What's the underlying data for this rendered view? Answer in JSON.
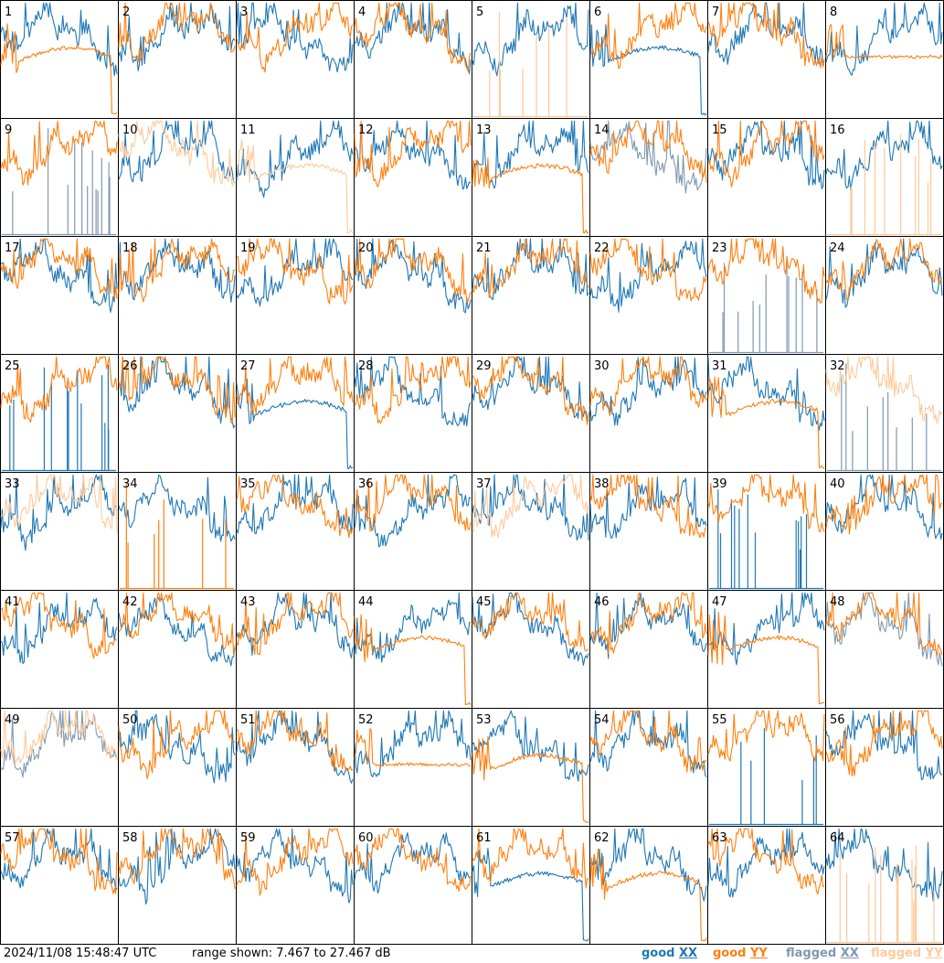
{
  "footer": {
    "timestamp": "2024/11/08 15:48:47 UTC",
    "range_text": "range shown: 7.467 to 27.467 dB"
  },
  "legend": [
    {
      "key": "good_xx",
      "word": "good",
      "pol": "XX",
      "color": "#1f77b4"
    },
    {
      "key": "good_yy",
      "word": "good",
      "pol": "YY",
      "color": "#ff7f0e"
    },
    {
      "key": "flagged_xx",
      "word": "flagged",
      "pol": "XX",
      "color": "#7f98b0"
    },
    {
      "key": "flagged_yy",
      "word": "flagged",
      "pol": "YY",
      "color": "#ffc99a"
    }
  ],
  "chart_data": {
    "type": "line",
    "grid": {
      "rows": 8,
      "cols": 8
    },
    "ylim_db": [
      7.467,
      27.467
    ],
    "panels": [
      {
        "label": "1",
        "xx": "good",
        "yy": "good",
        "yy_shape": "drop"
      },
      {
        "label": "2",
        "xx": "good",
        "yy": "good"
      },
      {
        "label": "3",
        "xx": "good",
        "yy": "good"
      },
      {
        "label": "4",
        "xx": "good",
        "yy": "good"
      },
      {
        "label": "5",
        "xx": "good",
        "yy": "flagged",
        "yy_shape": "spikes"
      },
      {
        "label": "6",
        "xx": "good",
        "yy": "good",
        "xx_shape": "drop"
      },
      {
        "label": "7",
        "xx": "good",
        "yy": "good"
      },
      {
        "label": "8",
        "xx": "good",
        "yy": "good",
        "yy_shape": "flat"
      },
      {
        "label": "9",
        "xx": "flagged",
        "yy": "good",
        "xx_shape": "spikes"
      },
      {
        "label": "10",
        "xx": "good",
        "yy": "flagged"
      },
      {
        "label": "11",
        "xx": "good",
        "yy": "flagged",
        "yy_shape": "drop"
      },
      {
        "label": "12",
        "xx": "good",
        "yy": "good"
      },
      {
        "label": "13",
        "xx": "good",
        "yy": "good",
        "yy_shape": "drop"
      },
      {
        "label": "14",
        "xx": "flagged",
        "yy": "good"
      },
      {
        "label": "15",
        "xx": "good",
        "yy": "good"
      },
      {
        "label": "16",
        "xx": "good",
        "yy": "flagged",
        "yy_shape": "spikes"
      },
      {
        "label": "17",
        "xx": "good",
        "yy": "good"
      },
      {
        "label": "18",
        "xx": "good",
        "yy": "good"
      },
      {
        "label": "19",
        "xx": "good",
        "yy": "good"
      },
      {
        "label": "20",
        "xx": "good",
        "yy": "good"
      },
      {
        "label": "21",
        "xx": "good",
        "yy": "good"
      },
      {
        "label": "22",
        "xx": "good",
        "yy": "good"
      },
      {
        "label": "23",
        "xx": "flagged",
        "yy": "good",
        "xx_shape": "spikes"
      },
      {
        "label": "24",
        "xx": "good",
        "yy": "good"
      },
      {
        "label": "25",
        "xx": "good",
        "yy": "good",
        "xx_shape": "spikes"
      },
      {
        "label": "26",
        "xx": "good",
        "yy": "good"
      },
      {
        "label": "27",
        "xx": "good",
        "yy": "good",
        "xx_shape": "drop"
      },
      {
        "label": "28",
        "xx": "good",
        "yy": "good"
      },
      {
        "label": "29",
        "xx": "good",
        "yy": "good"
      },
      {
        "label": "30",
        "xx": "good",
        "yy": "good"
      },
      {
        "label": "31",
        "xx": "good",
        "yy": "good",
        "yy_shape": "drop"
      },
      {
        "label": "32",
        "xx": "flagged",
        "yy": "flagged",
        "xx_shape": "spikes"
      },
      {
        "label": "33",
        "xx": "good",
        "yy": "flagged"
      },
      {
        "label": "34",
        "xx": "good",
        "yy": "good",
        "yy_shape": "spikes"
      },
      {
        "label": "35",
        "xx": "good",
        "yy": "good"
      },
      {
        "label": "36",
        "xx": "good",
        "yy": "good"
      },
      {
        "label": "37",
        "xx": "good",
        "yy": "flagged"
      },
      {
        "label": "38",
        "xx": "good",
        "yy": "good"
      },
      {
        "label": "39",
        "xx": "good",
        "yy": "good",
        "xx_shape": "spikes"
      },
      {
        "label": "40",
        "xx": "good",
        "yy": "good"
      },
      {
        "label": "41",
        "xx": "good",
        "yy": "good"
      },
      {
        "label": "42",
        "xx": "good",
        "yy": "good"
      },
      {
        "label": "43",
        "xx": "good",
        "yy": "good"
      },
      {
        "label": "44",
        "xx": "good",
        "yy": "good",
        "yy_shape": "drop"
      },
      {
        "label": "45",
        "xx": "good",
        "yy": "good"
      },
      {
        "label": "46",
        "xx": "good",
        "yy": "good"
      },
      {
        "label": "47",
        "xx": "good",
        "yy": "good",
        "yy_shape": "drop"
      },
      {
        "label": "48",
        "xx": "flagged",
        "yy": "good"
      },
      {
        "label": "49",
        "xx": "flagged",
        "yy": "flagged"
      },
      {
        "label": "50",
        "xx": "good",
        "yy": "good"
      },
      {
        "label": "51",
        "xx": "good",
        "yy": "good"
      },
      {
        "label": "52",
        "xx": "good",
        "yy": "good",
        "yy_shape": "flat"
      },
      {
        "label": "53",
        "xx": "good",
        "yy": "good",
        "yy_shape": "drop"
      },
      {
        "label": "54",
        "xx": "good",
        "yy": "good"
      },
      {
        "label": "55",
        "xx": "good",
        "yy": "good",
        "xx_shape": "spikes"
      },
      {
        "label": "56",
        "xx": "good",
        "yy": "good"
      },
      {
        "label": "57",
        "xx": "good",
        "yy": "good"
      },
      {
        "label": "58",
        "xx": "good",
        "yy": "good"
      },
      {
        "label": "59",
        "xx": "good",
        "yy": "good"
      },
      {
        "label": "60",
        "xx": "good",
        "yy": "good"
      },
      {
        "label": "61",
        "xx": "good",
        "yy": "good",
        "xx_shape": "drop"
      },
      {
        "label": "62",
        "xx": "good",
        "yy": "good",
        "yy_shape": "drop"
      },
      {
        "label": "63",
        "xx": "good",
        "yy": "good"
      },
      {
        "label": "64",
        "xx": "good",
        "yy": "flagged",
        "yy_shape": "spikes"
      }
    ]
  }
}
